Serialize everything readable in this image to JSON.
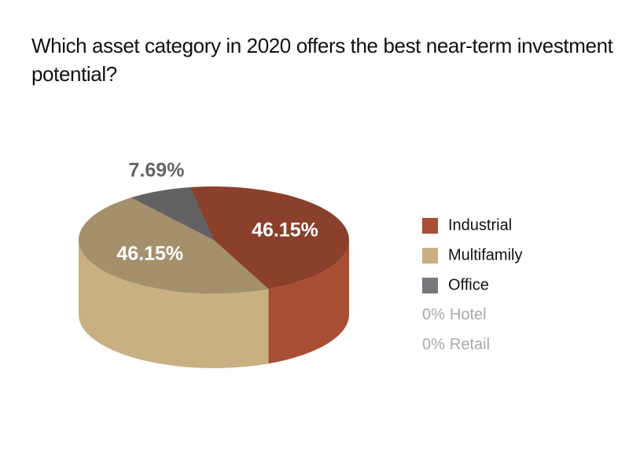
{
  "chart_data": {
    "type": "pie3d",
    "title": "Which asset category in 2020 offers the best near-term investment potential?",
    "categories": [
      "Industrial",
      "Multifamily",
      "Office",
      "Hotel",
      "Retail"
    ],
    "values": [
      46.15,
      46.15,
      7.69,
      0,
      0
    ],
    "value_labels": [
      "46.15%",
      "46.15%",
      "7.69%",
      "0%",
      "0%"
    ],
    "colors": [
      "#a84e34",
      "#c8b083",
      "#77787b",
      "#aaaaaa",
      "#aaaaaa"
    ]
  }
}
